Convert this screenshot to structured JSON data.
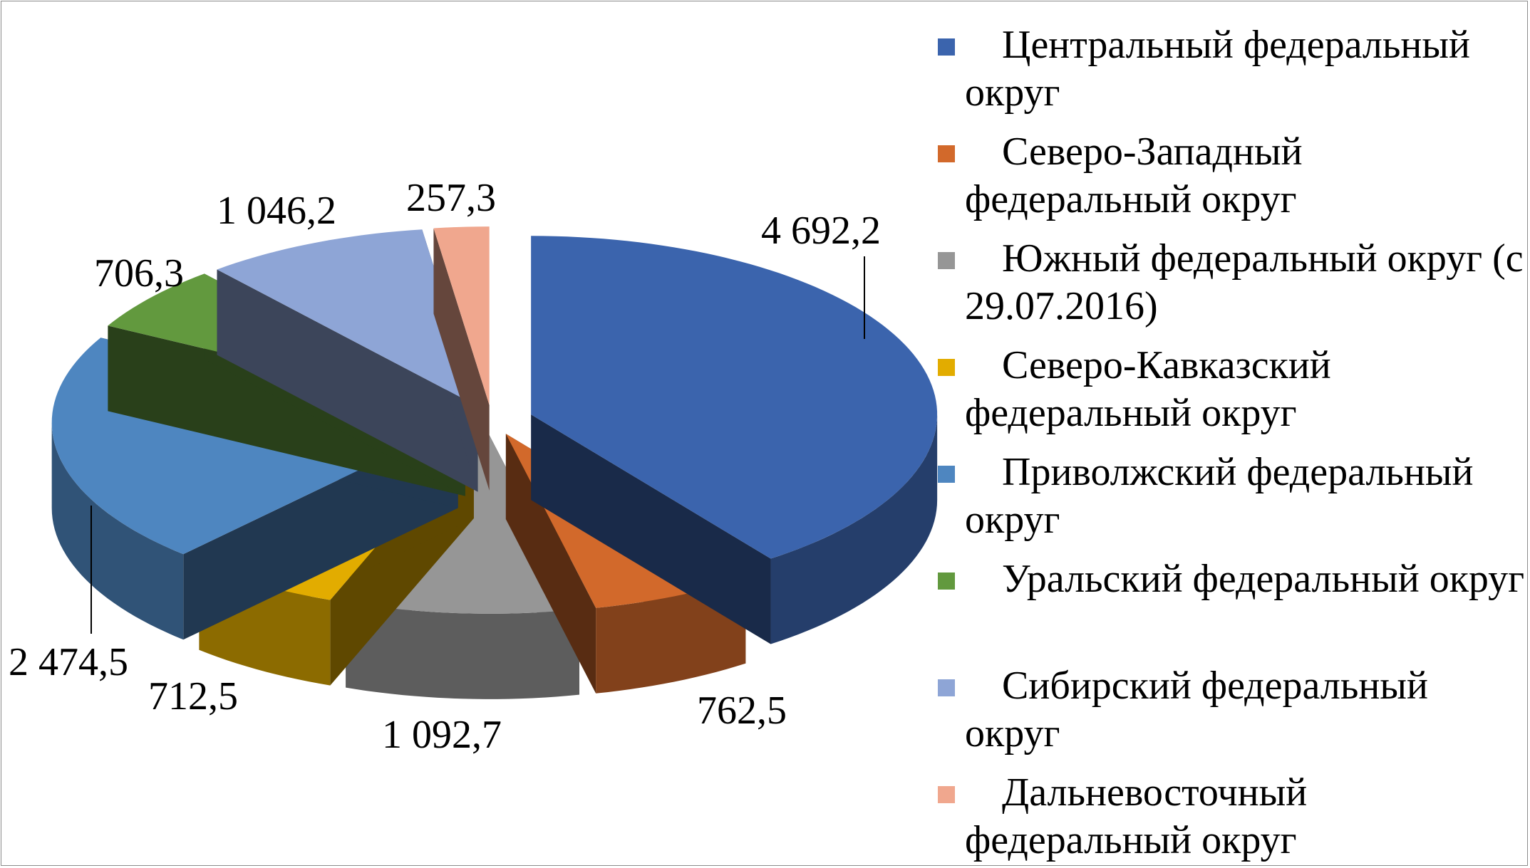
{
  "chart_data": {
    "type": "pie",
    "style": "3d-exploded",
    "legend_position": "right",
    "series": [
      {
        "name": "Центральный федеральный округ",
        "value": 4692.2,
        "label": "4 692,2",
        "color": "#3B64AD"
      },
      {
        "name": "Северо-Западный федеральный округ",
        "value": 762.5,
        "label": "762,5",
        "color": "#D2692B"
      },
      {
        "name": "Южный федеральный округ (с 29.07.2016)",
        "value": 1092.7,
        "label": "1 092,7",
        "color": "#969696"
      },
      {
        "name": "Северо-Кавказский федеральный округ",
        "value": 712.5,
        "label": "712,5",
        "color": "#E2AC00"
      },
      {
        "name": "Приволжский федеральный округ",
        "value": 2474.5,
        "label": "2 474,5",
        "color": "#4E86C0"
      },
      {
        "name": "Уральский федеральный округ",
        "value": 706.3,
        "label": "706,3",
        "color": "#62993E"
      },
      {
        "name": "Сибирский федеральный округ",
        "value": 1046.2,
        "label": "1 046,2",
        "color": "#8EA5D6"
      },
      {
        "name": "Дальневосточный федеральный округ",
        "value": 257.3,
        "label": "257,3",
        "color": "#F0A78E"
      }
    ]
  }
}
